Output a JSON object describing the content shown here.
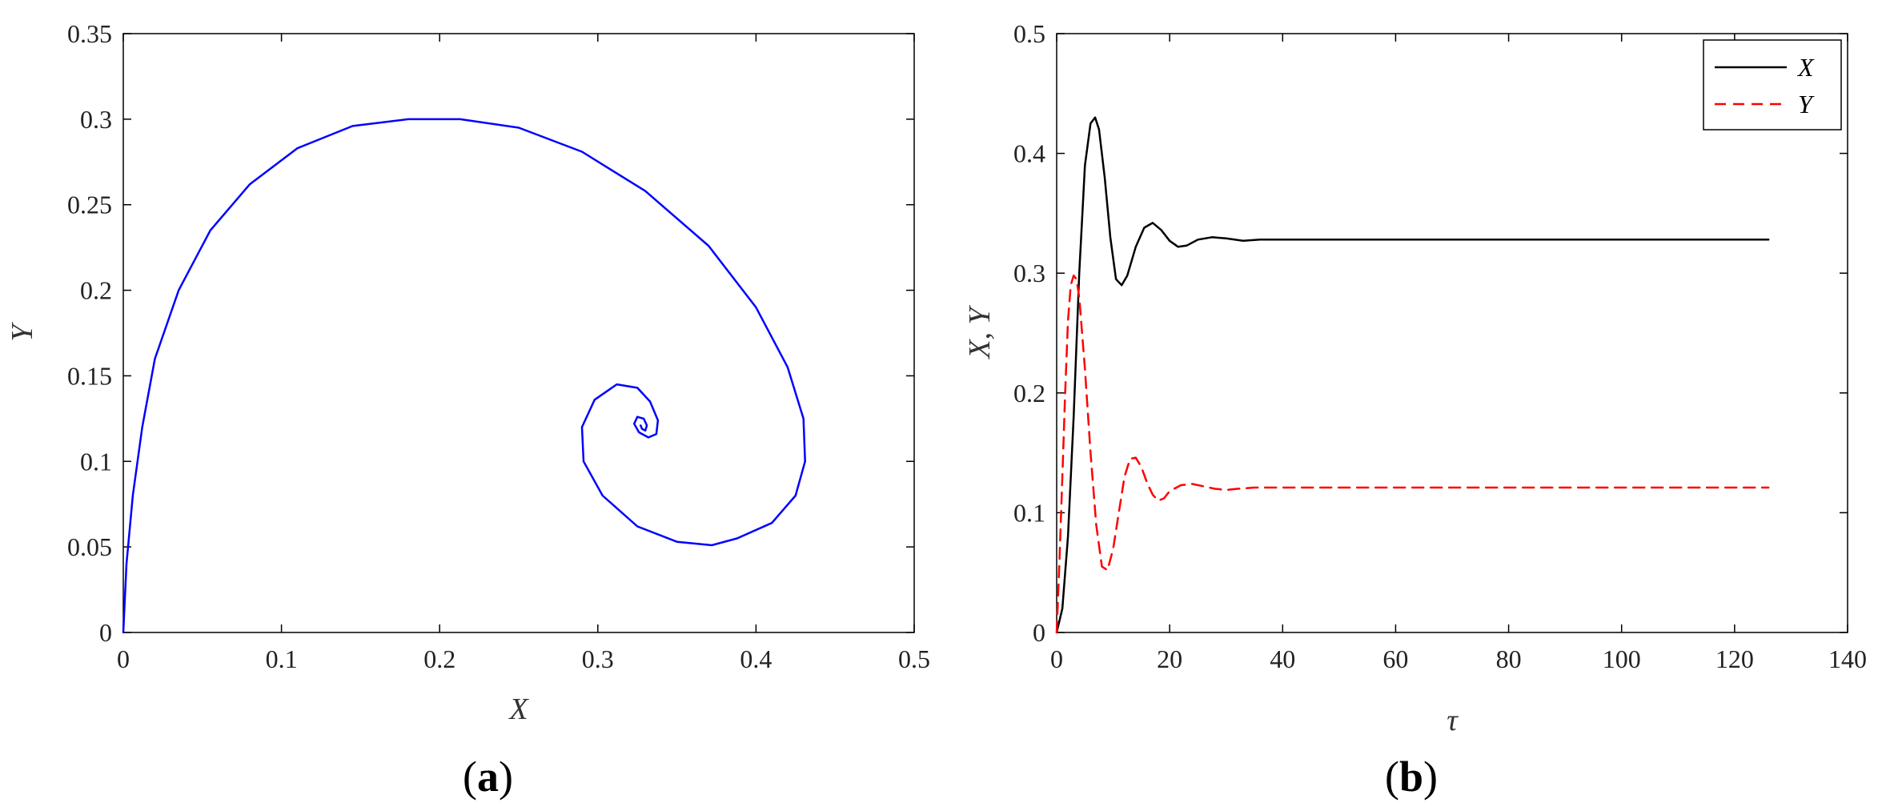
{
  "chart_data": [
    {
      "panel": "a",
      "type": "line",
      "xlabel": "X",
      "ylabel": "Y",
      "xlim": [
        0,
        0.5
      ],
      "ylim": [
        0,
        0.35
      ],
      "xticks": [
        "0",
        "0.1",
        "0.2",
        "0.3",
        "0.4",
        "0.5"
      ],
      "yticks": [
        "0",
        "0.05",
        "0.1",
        "0.15",
        "0.2",
        "0.25",
        "0.3",
        "0.35"
      ],
      "grid": false,
      "series": [
        {
          "color": "#0000ff",
          "style": "solid",
          "x": [
            0,
            0.002,
            0.006,
            0.012,
            0.02,
            0.035,
            0.055,
            0.08,
            0.11,
            0.145,
            0.18,
            0.213,
            0.25,
            0.29,
            0.33,
            0.37,
            0.4,
            0.42,
            0.43,
            0.431,
            0.425,
            0.41,
            0.388,
            0.372,
            0.35,
            0.325,
            0.303,
            0.291,
            0.29,
            0.298,
            0.312,
            0.325,
            0.333,
            0.338,
            0.337,
            0.332,
            0.326,
            0.323,
            0.325,
            0.329,
            0.331,
            0.33,
            0.328,
            0.327,
            0.3275
          ],
          "y": [
            0,
            0.04,
            0.08,
            0.12,
            0.16,
            0.2,
            0.235,
            0.262,
            0.283,
            0.296,
            0.3,
            0.3,
            0.295,
            0.281,
            0.258,
            0.226,
            0.19,
            0.155,
            0.125,
            0.1,
            0.08,
            0.064,
            0.055,
            0.051,
            0.053,
            0.062,
            0.08,
            0.1,
            0.12,
            0.136,
            0.145,
            0.143,
            0.135,
            0.124,
            0.116,
            0.114,
            0.117,
            0.122,
            0.126,
            0.125,
            0.121,
            0.118,
            0.119,
            0.121,
            0.12
          ]
        }
      ]
    },
    {
      "panel": "b",
      "type": "line",
      "xlabel": "τ",
      "ylabel": "X, Y",
      "xlim": [
        0,
        140
      ],
      "ylim": [
        0,
        0.5
      ],
      "xticks": [
        "0",
        "20",
        "40",
        "60",
        "80",
        "100",
        "120",
        "140"
      ],
      "yticks": [
        "0",
        "0.1",
        "0.2",
        "0.3",
        "0.4",
        "0.5"
      ],
      "grid": false,
      "legend_position": "top-right",
      "series": [
        {
          "name": "X",
          "color": "#000000",
          "style": "solid",
          "x": [
            0,
            1,
            2,
            3,
            4,
            5,
            6,
            6.8,
            7.5,
            8.5,
            9.5,
            10.5,
            11.5,
            12.5,
            14,
            15.5,
            17,
            18.5,
            20,
            21.5,
            23,
            25,
            27.5,
            30,
            33,
            36,
            40,
            126
          ],
          "y": [
            0,
            0.02,
            0.08,
            0.18,
            0.3,
            0.39,
            0.425,
            0.43,
            0.42,
            0.38,
            0.33,
            0.295,
            0.29,
            0.298,
            0.322,
            0.338,
            0.342,
            0.336,
            0.327,
            0.322,
            0.323,
            0.328,
            0.33,
            0.329,
            0.327,
            0.328,
            0.328,
            0.328
          ]
        },
        {
          "name": "Y",
          "color": "#ff0000",
          "style": "dashed",
          "x": [
            0,
            0.5,
            1,
            1.5,
            2,
            2.5,
            3,
            3.5,
            4,
            5,
            6,
            7,
            8,
            9,
            10,
            11,
            12,
            13,
            14,
            15,
            16,
            17,
            18,
            19,
            20,
            22,
            24,
            26,
            28,
            30,
            32,
            35,
            40,
            126
          ],
          "y": [
            0,
            0.06,
            0.13,
            0.2,
            0.26,
            0.29,
            0.298,
            0.295,
            0.28,
            0.22,
            0.15,
            0.09,
            0.055,
            0.052,
            0.07,
            0.1,
            0.13,
            0.145,
            0.146,
            0.138,
            0.125,
            0.115,
            0.11,
            0.112,
            0.118,
            0.123,
            0.124,
            0.122,
            0.12,
            0.119,
            0.12,
            0.121,
            0.121,
            0.121
          ]
        }
      ]
    }
  ],
  "panel_labels": {
    "a": {
      "open": "(",
      "letter": "a",
      "close": ")"
    },
    "b": {
      "open": "(",
      "letter": "b",
      "close": ")"
    }
  }
}
